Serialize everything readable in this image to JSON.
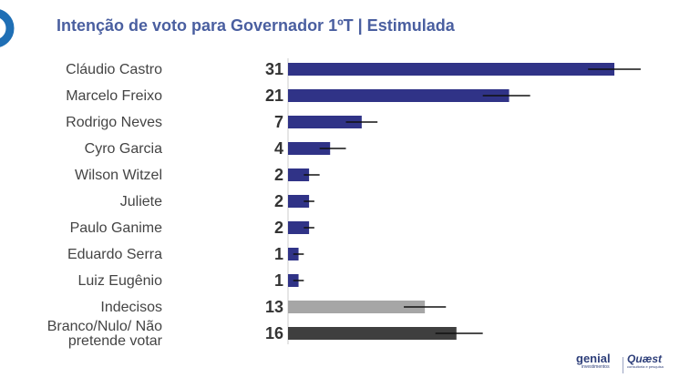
{
  "colors": {
    "primary_bar": "#303387",
    "indecisos_bar": "#a6a6a6",
    "branco_bar": "#3f3f3f",
    "error_bar": "#111111",
    "value_text": "#333333",
    "label_text": "#444444",
    "title_text": "#4a5fa0",
    "logo_ring": "#1f6fb5"
  },
  "brands": {
    "genial": {
      "main": "genial",
      "sub": "investimentos"
    },
    "quaest": {
      "main": "Quæst",
      "sub": "consultoria e pesquisa"
    }
  },
  "chart_data": {
    "type": "bar",
    "orientation": "horizontal",
    "title": "Intenção de voto para Governador 1ºT | Estimulada",
    "xlabel": "",
    "ylabel": "",
    "xlim": [
      0,
      36
    ],
    "grid": false,
    "legend": "none",
    "categories": [
      "Cláudio Castro",
      "Marcelo Freixo",
      "Rodrigo Neves",
      "Cyro Garcia",
      "Wilson Witzel",
      "Juliete",
      "Paulo Ganime",
      "Eduardo Serra",
      "Luiz Eugênio",
      "Indecisos",
      "Branco/Nulo/ Não pretende votar"
    ],
    "category_lines": [
      [
        "Cláudio Castro"
      ],
      [
        "Marcelo Freixo"
      ],
      [
        "Rodrigo Neves"
      ],
      [
        "Cyro Garcia"
      ],
      [
        "Wilson Witzel"
      ],
      [
        "Juliete"
      ],
      [
        "Paulo Ganime"
      ],
      [
        "Eduardo Serra"
      ],
      [
        "Luiz Eugênio"
      ],
      [
        "Indecisos"
      ],
      [
        "Branco/Nulo/ Não",
        "pretende votar"
      ]
    ],
    "values": [
      31,
      21,
      7,
      4,
      2,
      2,
      2,
      1,
      1,
      13,
      16
    ],
    "error_low": [
      28.5,
      18.5,
      5.5,
      3,
      1.5,
      1.5,
      1.5,
      0.5,
      0.5,
      11,
      14
    ],
    "error_high": [
      33.5,
      23,
      8.5,
      5.5,
      3,
      2.5,
      2.5,
      1.5,
      1.5,
      15,
      18.5
    ],
    "bar_colors": [
      "primary",
      "primary",
      "primary",
      "primary",
      "primary",
      "primary",
      "primary",
      "primary",
      "primary",
      "indecisos",
      "branco"
    ]
  }
}
